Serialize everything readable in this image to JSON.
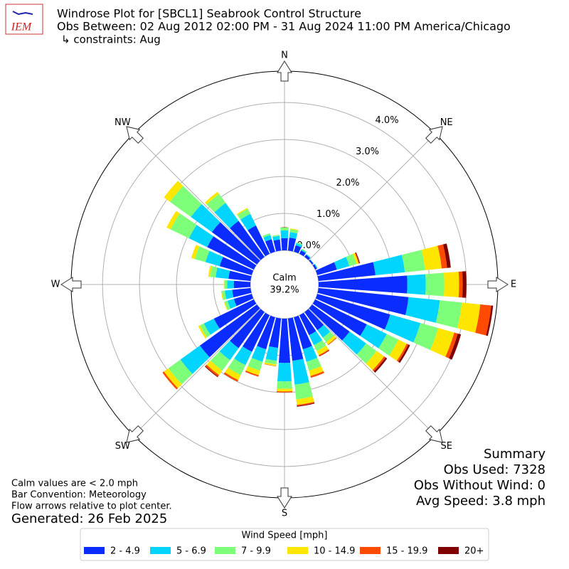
{
  "chart_data": {
    "type": "windrose",
    "logo_text": "IEM",
    "title": "Windrose Plot for [SBCL1] Seabrook Control Structure",
    "subtitle": "Obs Between: 02 Aug 2012 02:00 PM - 31 Aug 2024 11:00 PM America/Chicago",
    "constraints": "↳ constraints: Aug",
    "direction_labels": [
      "N",
      "NE",
      "E",
      "SE",
      "S",
      "SW",
      "W",
      "NW"
    ],
    "calm_label": "Calm",
    "calm_value_label": "39.2%",
    "ylim": [
      0,
      4.85
    ],
    "yticks": [
      {
        "value": 0,
        "label": "0.0%"
      },
      {
        "value": 1,
        "label": "1.0%"
      },
      {
        "value": 2,
        "label": "2.0%"
      },
      {
        "value": 3,
        "label": "3.0%"
      },
      {
        "value": 4,
        "label": "4.0%"
      }
    ],
    "grid": true,
    "categories": [
      null,
      null,
      null,
      null,
      null,
      null,
      null,
      null,
      null,
      null,
      null,
      null,
      null,
      null,
      null,
      null,
      null,
      null,
      null,
      null,
      null,
      null,
      null,
      null,
      null,
      null,
      null,
      null,
      null,
      null,
      null,
      null,
      null,
      null,
      null,
      null
    ],
    "legend_title": "Wind Speed [mph]",
    "series": [
      {
        "name": "2 - 4.9",
        "color": "#0a2cff",
        "values": [
          0.33,
          0.35,
          0.18,
          0.1,
          0.07,
          0.04,
          0.05,
          0.55,
          1.55,
          2.4,
          2.45,
          2.05,
          1.55,
          1.25,
          0.6,
          0.6,
          0.9,
          1.15,
          1.2,
          0.8,
          0.9,
          1.1,
          1.2,
          1.9,
          1.2,
          0.5,
          0.5,
          0.45,
          0.6,
          0.9,
          1.4,
          1.5,
          1.2,
          0.85,
          0.35,
          0.3
        ]
      },
      {
        "name": "5 - 6.9",
        "color": "#00d4ff",
        "values": [
          0.21,
          0.15,
          0.06,
          0.03,
          0.02,
          0.01,
          0.02,
          0.35,
          0.8,
          0.5,
          0.85,
          0.85,
          0.6,
          0.55,
          0.25,
          0.3,
          0.35,
          0.65,
          0.5,
          0.35,
          0.35,
          0.4,
          0.4,
          0.65,
          0.3,
          0.18,
          0.2,
          0.18,
          0.35,
          0.4,
          0.55,
          0.7,
          0.6,
          0.35,
          0.12,
          0.1
        ]
      },
      {
        "name": "7 - 9.9",
        "color": "#7dff7a",
        "values": [
          0.08,
          0.08,
          0.03,
          0.02,
          0.01,
          0,
          0.01,
          0.2,
          0.55,
          0.5,
          0.6,
          0.5,
          0.35,
          0.35,
          0.15,
          0.18,
          0.25,
          0.4,
          0.2,
          0.1,
          0.25,
          0.3,
          0.35,
          0.4,
          0.12,
          0.08,
          0.08,
          0.07,
          0.15,
          0.3,
          0.55,
          0.7,
          0.3,
          0.15,
          0.05,
          0.03
        ]
      },
      {
        "name": "10 - 14.9",
        "color": "#ffe600",
        "values": [
          0,
          0.02,
          0,
          0,
          0,
          0,
          0,
          0.06,
          0.45,
          0.4,
          0.5,
          0.45,
          0.25,
          0.25,
          0.08,
          0.12,
          0.15,
          0.15,
          0.07,
          0.04,
          0.13,
          0.15,
          0.15,
          0.15,
          0.05,
          0.02,
          0.02,
          0.02,
          0.05,
          0.1,
          0.12,
          0.2,
          0.07,
          0.03,
          0,
          0
        ]
      },
      {
        "name": "15 - 19.9",
        "color": "#ff4a00",
        "values": [
          0,
          0,
          0,
          0,
          0,
          0,
          0,
          0.02,
          0.15,
          0.1,
          0.3,
          0.1,
          0.05,
          0.05,
          0.02,
          0.03,
          0.05,
          0.03,
          0.03,
          0.01,
          0.04,
          0.05,
          0.05,
          0.05,
          0,
          0,
          0,
          0,
          0,
          0,
          0,
          0,
          0,
          0,
          0,
          0
        ]
      },
      {
        "name": "20+",
        "color": "#800000",
        "values": [
          0,
          0,
          0,
          0,
          0,
          0,
          0,
          0.02,
          0.1,
          0.1,
          0.05,
          0.09,
          0.05,
          0.05,
          0,
          0.01,
          0,
          0.02,
          0,
          0,
          0,
          0,
          0.02,
          0,
          0,
          0,
          0,
          0,
          0,
          0,
          0,
          0,
          0,
          0,
          0,
          0
        ]
      }
    ],
    "notes": [
      "Calm values are < 2.0 mph",
      "Bar Convention: Meteorology",
      "Flow arrows relative to plot center."
    ],
    "generated": "Generated: 26 Feb 2025",
    "summary": [
      "Summary",
      "Obs Used: 7328",
      "Obs Without Wind: 0",
      "Avg Speed: 3.8 mph"
    ]
  }
}
